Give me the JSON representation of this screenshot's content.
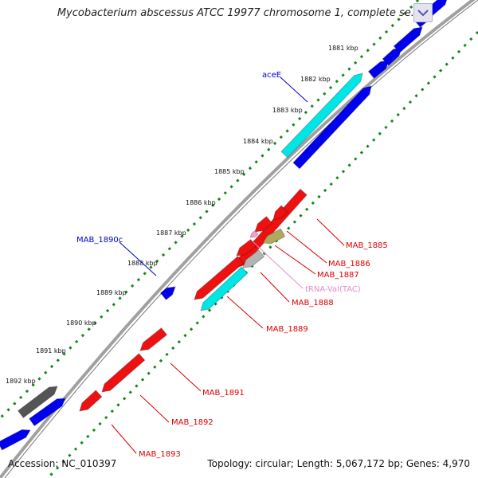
{
  "title": "Mycobacterium abscessus ATCC 19977 chromosome 1, complete se...",
  "footer": {
    "accession": "Accession: NC_010397",
    "topology": "Topology: circular; Length: 5,067,172 bp; Genes: 4,970"
  },
  "ruler": {
    "unit": "kbp",
    "ticks": [
      "1881 kbp",
      "1882 kbp",
      "1883 kbp",
      "1884 kbp",
      "1885 kbp",
      "1886 kbp",
      "1887 kbp",
      "1888 kbp",
      "1889 kbp",
      "1890 kbp",
      "1891 kbp",
      "1892 kbp"
    ]
  },
  "colors": {
    "red": "#ee1111",
    "blue": "#0000ee",
    "cyan": "#00e5e5",
    "gray": "#555555",
    "lightgray": "#b4b4b4",
    "olive": "#b0a860",
    "pink": "#f0a0d0",
    "backbone": "#a0a0a0",
    "ruler_dots": "#118811"
  },
  "labels": {
    "aceE": "aceE",
    "MAB_1890c": "MAB_1890c",
    "MAB_1885": "MAB_1885",
    "MAB_1886": "MAB_1886",
    "MAB_1887": "MAB_1887",
    "tRNA_Val": "tRNA-Val(TAC)",
    "MAB_1888": "MAB_1888",
    "MAB_1889": "MAB_1889",
    "MAB_1891": "MAB_1891",
    "MAB_1892": "MAB_1892",
    "MAB_1893": "MAB_1893"
  },
  "icons": {
    "scroll": "chevron-icon"
  }
}
